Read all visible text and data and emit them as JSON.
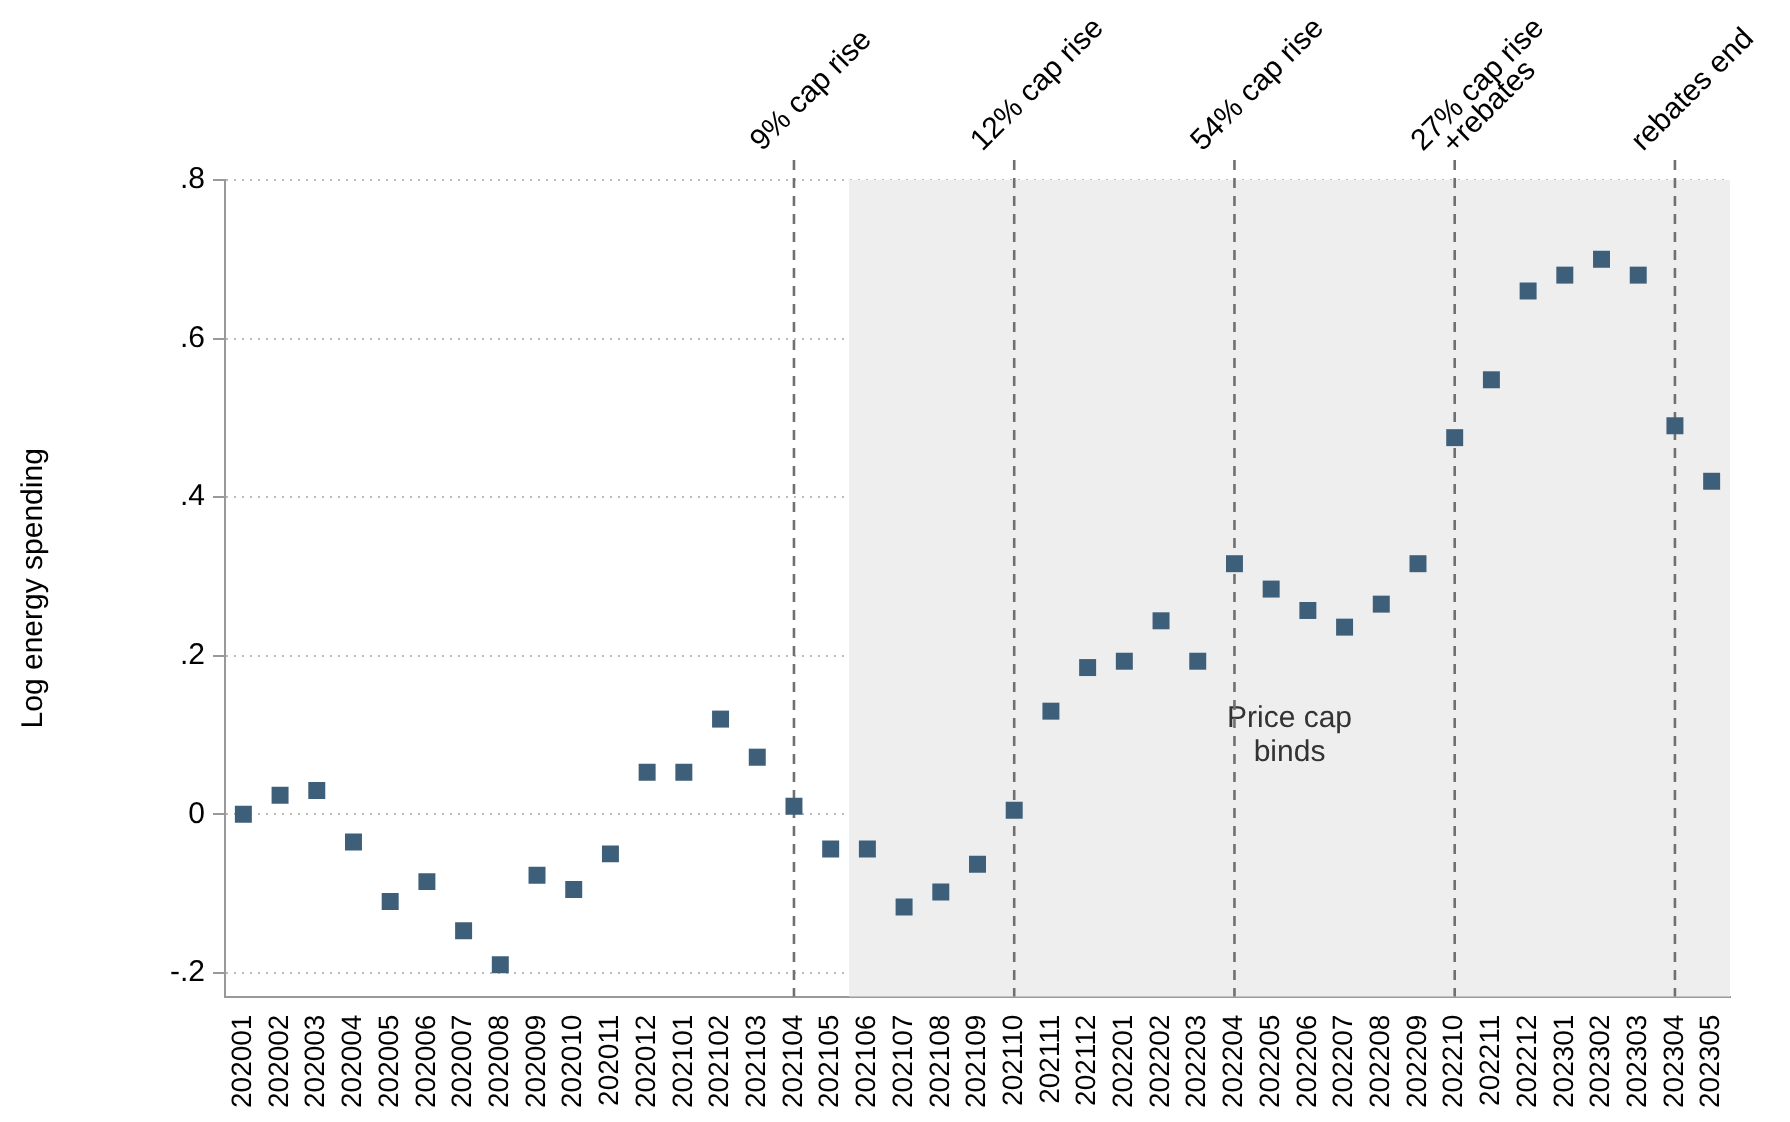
{
  "chart_data": {
    "type": "scatter",
    "ylabel": "Log energy spending",
    "categories": [
      "202001",
      "202002",
      "202003",
      "202004",
      "202005",
      "202006",
      "202007",
      "202008",
      "202009",
      "202010",
      "202011",
      "202012",
      "202101",
      "202102",
      "202103",
      "202104",
      "202105",
      "202106",
      "202107",
      "202108",
      "202109",
      "202110",
      "202111",
      "202112",
      "202201",
      "202202",
      "202203",
      "202204",
      "202205",
      "202206",
      "202207",
      "202208",
      "202209",
      "202210",
      "202211",
      "202212",
      "202301",
      "202302",
      "202303",
      "202304",
      "202305"
    ],
    "series": [
      {
        "color": "#3e5f7a",
        "values": [
          0.0,
          0.024,
          0.03,
          -0.035,
          -0.11,
          -0.085,
          -0.147,
          -0.19,
          -0.077,
          -0.095,
          -0.05,
          0.053,
          0.053,
          0.12,
          0.072,
          0.01,
          -0.044,
          -0.044,
          -0.117,
          -0.098,
          -0.063,
          0.005,
          0.13,
          0.185,
          0.193,
          0.244,
          0.193,
          0.316,
          0.284,
          0.257,
          0.236,
          0.265,
          0.316,
          0.475,
          0.548,
          0.66,
          0.68,
          0.7,
          0.68,
          0.49,
          0.42
        ]
      }
    ],
    "marker": "square",
    "grid": "y",
    "legend": false,
    "ylim": [
      -0.23,
      0.8
    ],
    "yticks": [
      {
        "value": -0.2,
        "label": "-.2"
      },
      0,
      {
        "value": 0.2,
        "label": ".2"
      },
      {
        "value": 0.4,
        "label": ".4"
      },
      {
        "value": 0.6,
        "label": ".6"
      },
      {
        "value": 0.8,
        "label": ".8"
      }
    ],
    "ref_lines": [
      {
        "axis": "x",
        "value": "202104",
        "label": "9% cap rise",
        "line_style": "dashed",
        "color": "#707070"
      },
      {
        "axis": "x",
        "value": "202110",
        "label": "12% cap rise",
        "line_style": "dashed",
        "color": "#707070"
      },
      {
        "axis": "x",
        "value": "202204",
        "label": "54% cap rise",
        "line_style": "dashed",
        "color": "#707070"
      },
      {
        "axis": "x",
        "value": "202210",
        "label": "27% cap rise\n+rebates",
        "line_style": "dashed",
        "color": "#707070"
      },
      {
        "axis": "x",
        "value": "202304",
        "label": "rebates end",
        "line_style": "dashed",
        "color": "#707070"
      }
    ],
    "bands": [
      {
        "axis": "x",
        "from": "202106",
        "to": "202305",
        "label": "Price cap\nbinds",
        "color": "#eeeeee"
      }
    ]
  }
}
